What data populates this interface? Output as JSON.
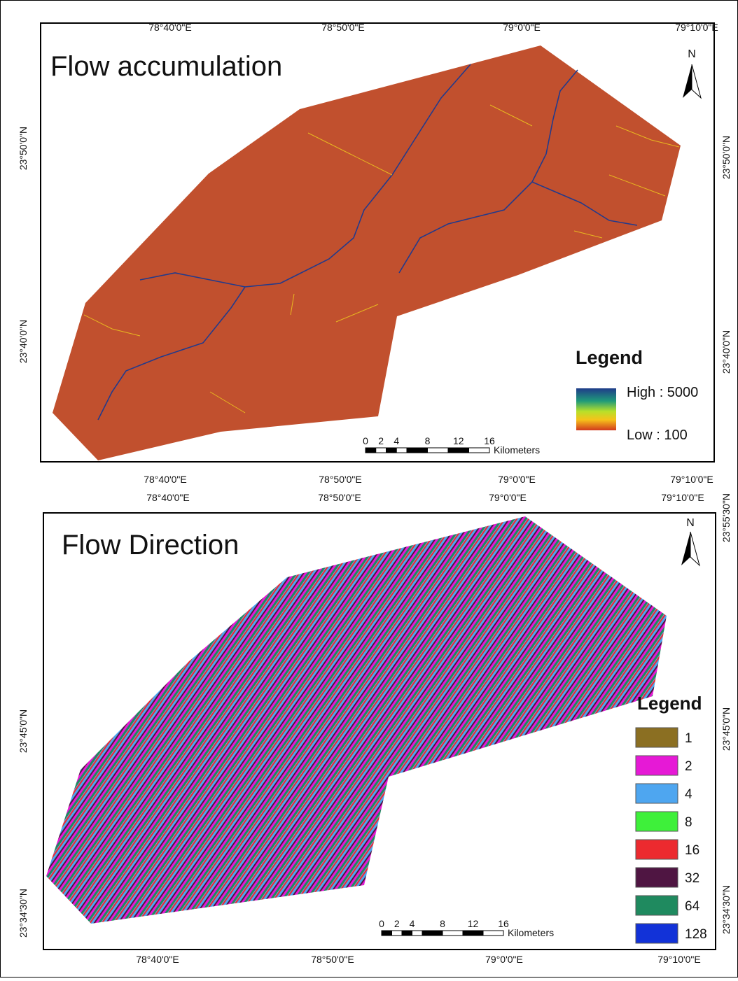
{
  "panels": [
    {
      "title": "Flow accumulation",
      "top_ticks": [
        "78°40'0\"E",
        "78°50'0\"E",
        "79°0'0\"E",
        "79°10'0\"E"
      ],
      "bottom_ticks": [
        "78°40'0\"E",
        "78°50'0\"E",
        "79°0'0\"E",
        "79°10'0\"E"
      ],
      "left_ticks": [
        "23°50'0\"N",
        "23°40'0\"N"
      ],
      "right_ticks": [
        "23°50'0\"N",
        "23°40'0\"N"
      ],
      "north": "N",
      "legend": {
        "title": "Legend",
        "high": "High : 5000",
        "low": "Low : 100"
      },
      "scale": {
        "labels": [
          "0",
          "2",
          "4",
          "8",
          "12",
          "16"
        ],
        "unit": "Kilometers"
      }
    },
    {
      "title": "Flow Direction",
      "top_ticks": [
        "78°40'0\"E",
        "78°50'0\"E",
        "79°0'0\"E",
        "79°10'0\"E"
      ],
      "bottom_ticks": [
        "78°40'0\"E",
        "78°50'0\"E",
        "79°0'0\"E",
        "79°10'0\"E"
      ],
      "left_ticks": [
        "23°45'0\"N",
        "23°34'30\"N"
      ],
      "right_ticks": [
        "23°55'30\"N",
        "23°45'0\"N",
        "23°34'30\"N"
      ],
      "north": "N",
      "legend": {
        "title": "Legend",
        "classes": [
          {
            "label": "1",
            "color": "#8b6f22"
          },
          {
            "label": "2",
            "color": "#e619d6"
          },
          {
            "label": "4",
            "color": "#4ea6f0"
          },
          {
            "label": "8",
            "color": "#3ef03a"
          },
          {
            "label": "16",
            "color": "#ec2a2f"
          },
          {
            "label": "32",
            "color": "#4f1542"
          },
          {
            "label": "64",
            "color": "#1f8a5f"
          },
          {
            "label": "128",
            "color": "#1232d8"
          }
        ]
      },
      "scale": {
        "labels": [
          "0",
          "2",
          "4",
          "8",
          "12",
          "16"
        ],
        "unit": "Kilometers"
      }
    }
  ]
}
